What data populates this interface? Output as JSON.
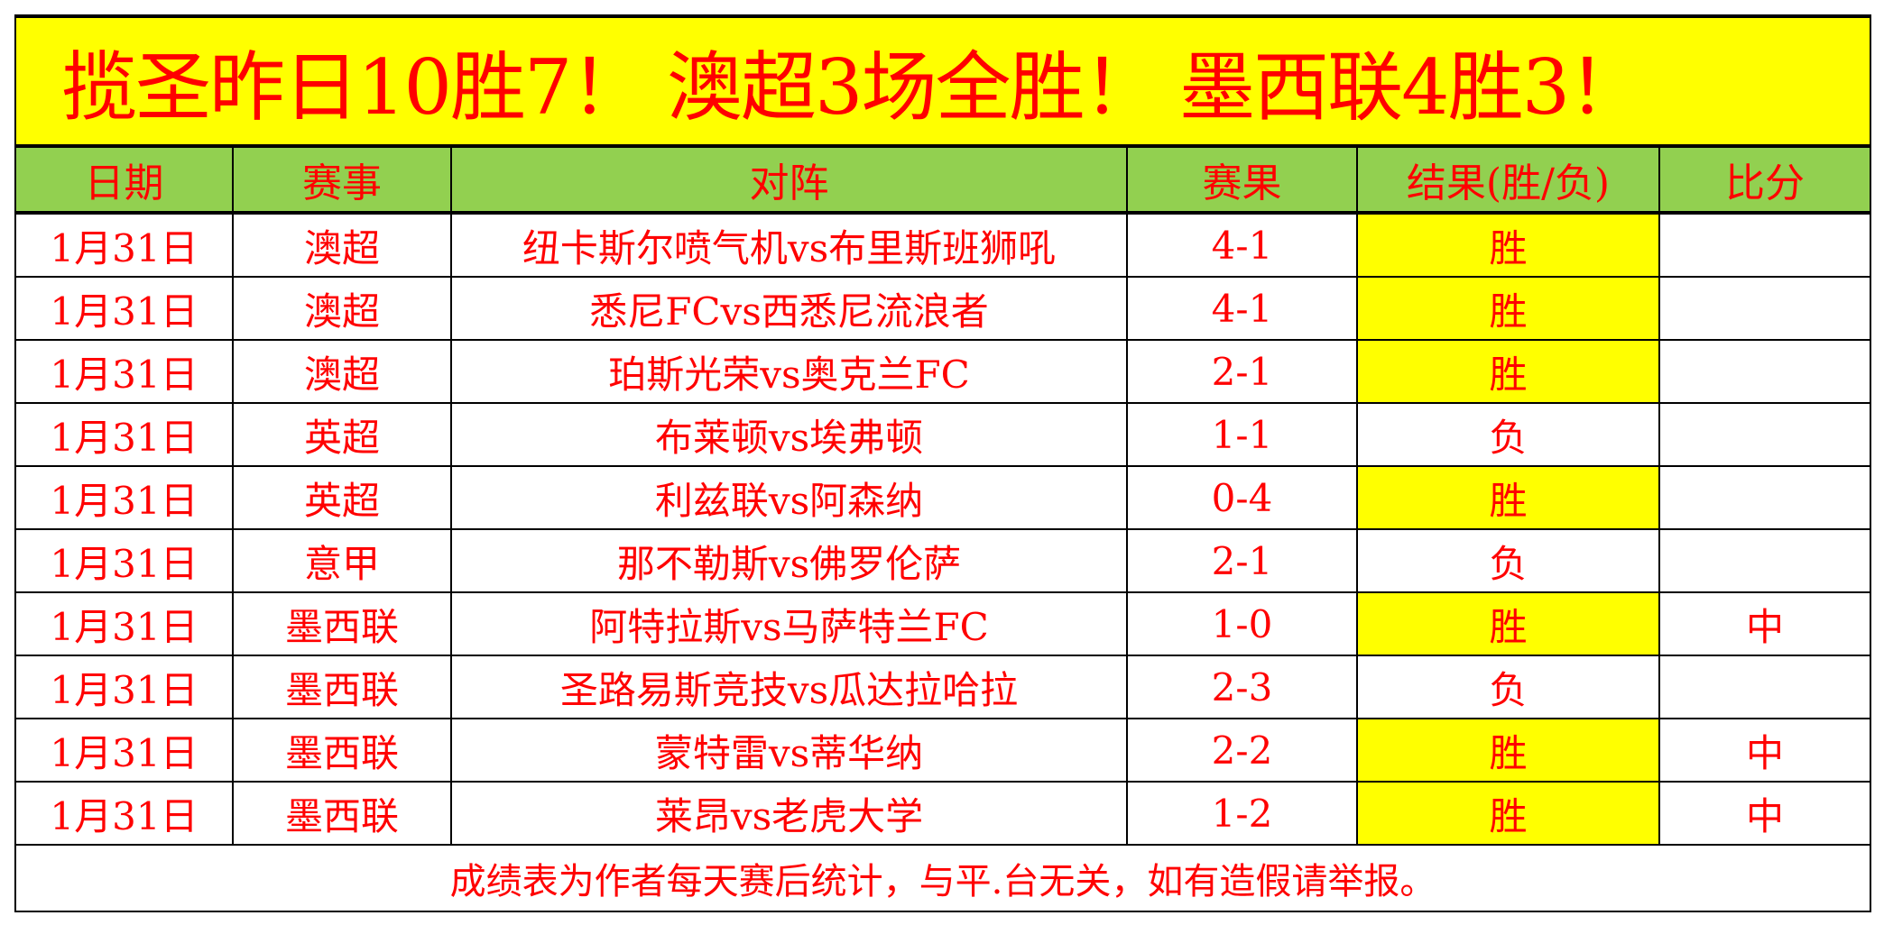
{
  "title": "揽圣昨日10胜7！ 澳超3场全胜！ 墨西联4胜3！",
  "headers": [
    "日期",
    "赛事",
    "对阵",
    "赛果",
    "结果(胜/负)",
    "比分"
  ],
  "rows": [
    {
      "date": "1月31日",
      "league": "澳超",
      "match": "纽卡斯尔喷气机vs布里斯班狮吼",
      "score": "4-1",
      "result": "胜",
      "bifen": ""
    },
    {
      "date": "1月31日",
      "league": "澳超",
      "match": "悉尼FCvs西悉尼流浪者",
      "score": "4-1",
      "result": "胜",
      "bifen": ""
    },
    {
      "date": "1月31日",
      "league": "澳超",
      "match": "珀斯光荣vs奥克兰FC",
      "score": "2-1",
      "result": "胜",
      "bifen": ""
    },
    {
      "date": "1月31日",
      "league": "英超",
      "match": "布莱顿vs埃弗顿",
      "score": "1-1",
      "result": "负",
      "bifen": ""
    },
    {
      "date": "1月31日",
      "league": "英超",
      "match": "利兹联vs阿森纳",
      "score": "0-4",
      "result": "胜",
      "bifen": ""
    },
    {
      "date": "1月31日",
      "league": "意甲",
      "match": "那不勒斯vs佛罗伦萨",
      "score": "2-1",
      "result": "负",
      "bifen": ""
    },
    {
      "date": "1月31日",
      "league": "墨西联",
      "match": "阿特拉斯vs马萨特兰FC",
      "score": "1-0",
      "result": "胜",
      "bifen": "中"
    },
    {
      "date": "1月31日",
      "league": "墨西联",
      "match": "圣路易斯竞技vs瓜达拉哈拉",
      "score": "2-3",
      "result": "负",
      "bifen": ""
    },
    {
      "date": "1月31日",
      "league": "墨西联",
      "match": "蒙特雷vs蒂华纳",
      "score": "2-2",
      "result": "胜",
      "bifen": "中"
    },
    {
      "date": "1月31日",
      "league": "墨西联",
      "match": "莱昂vs老虎大学",
      "score": "1-2",
      "result": "胜",
      "bifen": "中"
    }
  ],
  "footer": "成绩表为作者每天赛后统计，与平.台无关，如有造假请举报。",
  "colors": {
    "title_bg": "#ffff00",
    "header_bg": "#92d050",
    "text": "#ff0000",
    "win_bg": "#ffff00",
    "lose_text": "#000000"
  }
}
